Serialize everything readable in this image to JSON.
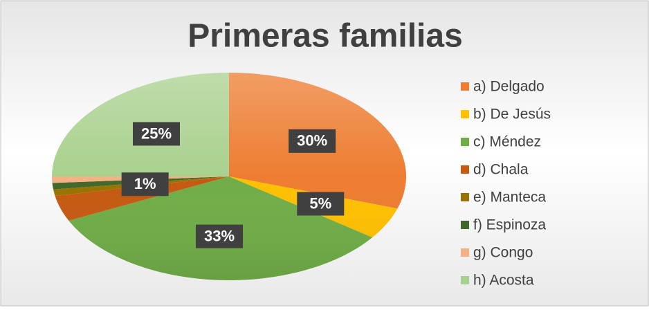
{
  "chart_data": {
    "type": "pie",
    "title": "Primeras familias",
    "categories": [
      "a) Delgado",
      "b) De Jesús",
      "c) Méndez",
      "d) Chala",
      "e) Manteca",
      "f) Espinoza",
      "g) Congo",
      "h) Acosta"
    ],
    "values": [
      30,
      5,
      33,
      4,
      1,
      1,
      1,
      25
    ],
    "value_labels": [
      "30%",
      "5%",
      "33%",
      null,
      "1%",
      null,
      null,
      "25%"
    ],
    "colors": [
      "#ED7D31",
      "#FFC000",
      "#70AD47",
      "#C55A11",
      "#997300",
      "#43682B",
      "#F4B183",
      "#A9D18E"
    ],
    "legend": "right"
  }
}
